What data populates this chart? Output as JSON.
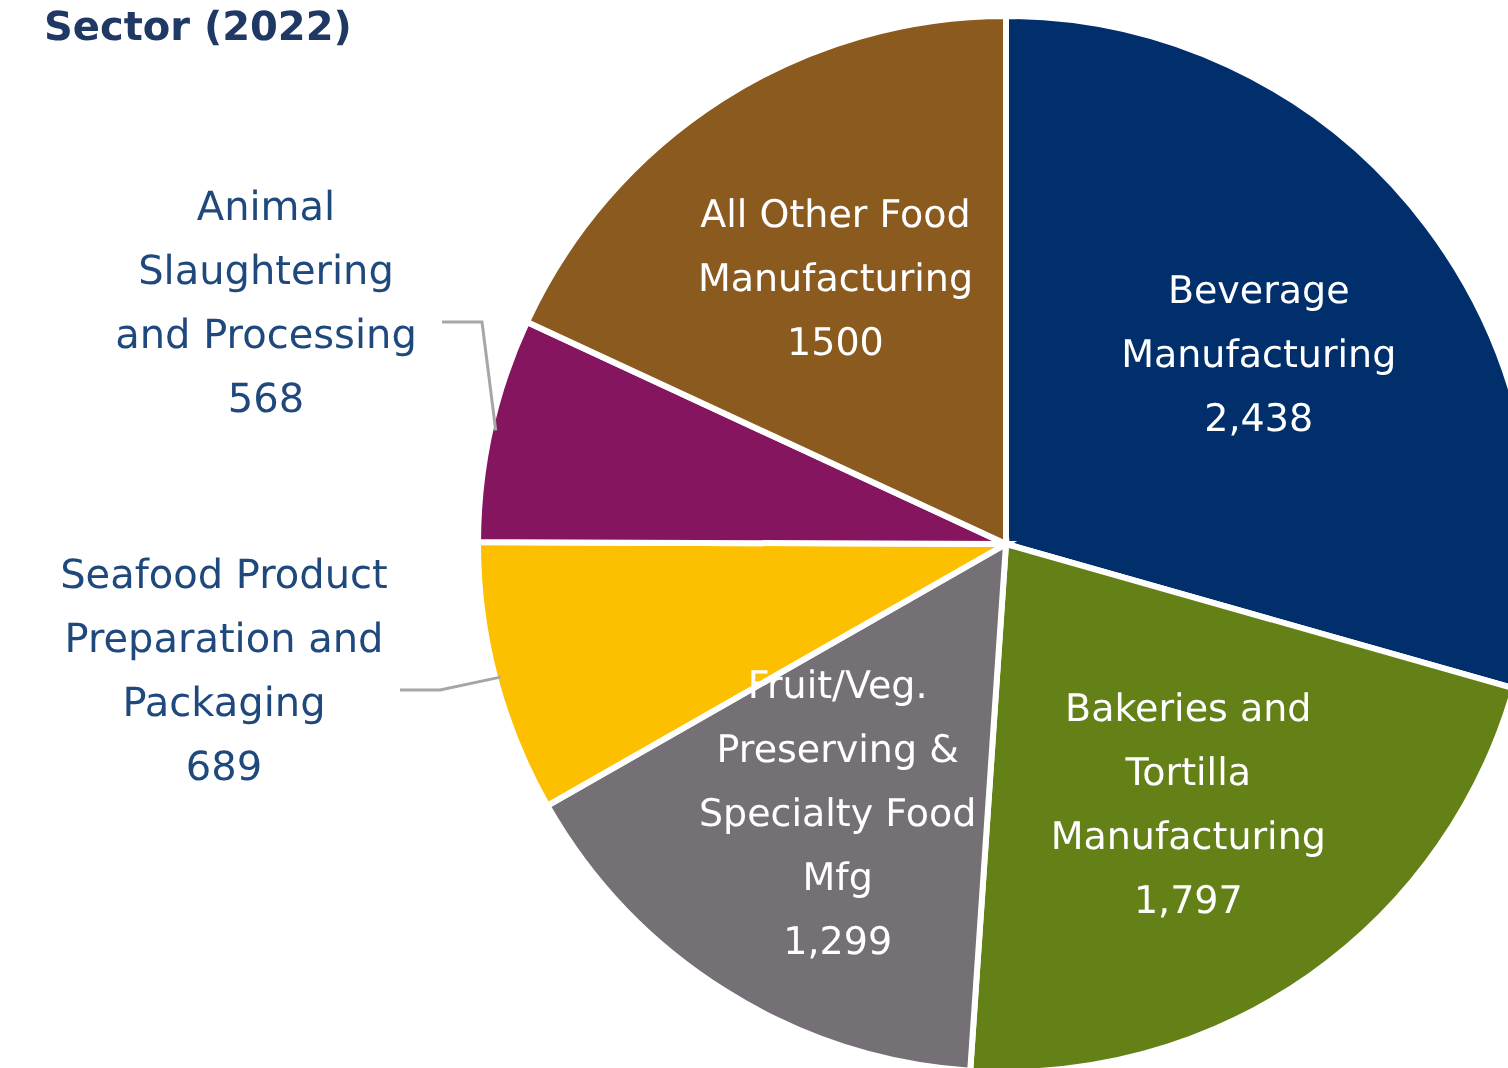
{
  "chart_data": {
    "type": "pie",
    "title": "Sector (2022)",
    "categories": [
      "Beverage Manufacturing",
      "Bakeries and Tortilla Manufacturing",
      "Fruit/Veg. Preserving & Specialty Food Mfg",
      "Seafood Product Preparation and Packaging",
      "Animal Slaughtering and Processing",
      "All Other Food Manufacturing"
    ],
    "values": [
      2438,
      1797,
      1299,
      689,
      568,
      1500
    ],
    "value_labels": [
      "2,438",
      "1,797",
      "1,299",
      "689",
      "568",
      "1500"
    ],
    "colors": [
      "#002f6c",
      "#648117",
      "#747075",
      "#fcc000",
      "#85155f",
      "#8b5a1f"
    ]
  }
}
